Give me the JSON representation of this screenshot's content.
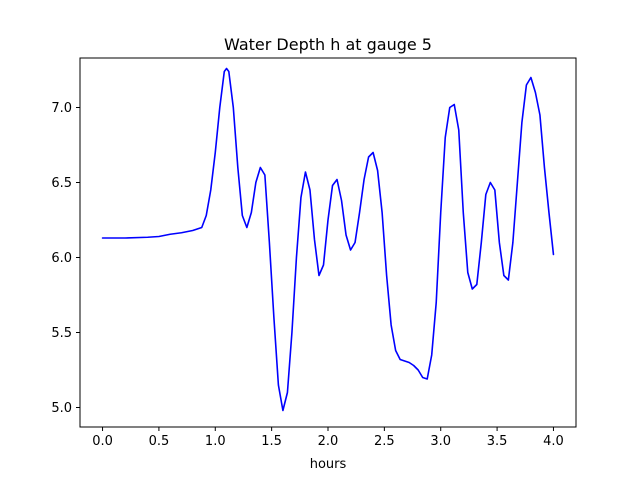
{
  "chart_data": {
    "type": "line",
    "title": "Water Depth h at gauge 5",
    "xlabel": "hours",
    "ylabel": "",
    "xlim": [
      -0.2,
      4.2
    ],
    "ylim": [
      4.87,
      7.33
    ],
    "xticks": [
      0.0,
      0.5,
      1.0,
      1.5,
      2.0,
      2.5,
      3.0,
      3.5,
      4.0
    ],
    "xtick_labels": [
      "0.0",
      "0.5",
      "1.0",
      "1.5",
      "2.0",
      "2.5",
      "3.0",
      "3.5",
      "4.0"
    ],
    "yticks": [
      5.0,
      5.5,
      6.0,
      6.5,
      7.0
    ],
    "ytick_labels": [
      "5.0",
      "5.5",
      "6.0",
      "6.5",
      "7.0"
    ],
    "grid": false,
    "series": [
      {
        "color": "#0000ff",
        "x": [
          0.0,
          0.2,
          0.4,
          0.5,
          0.6,
          0.7,
          0.8,
          0.88,
          0.92,
          0.96,
          1.0,
          1.04,
          1.08,
          1.1,
          1.12,
          1.16,
          1.2,
          1.24,
          1.28,
          1.32,
          1.36,
          1.4,
          1.44,
          1.48,
          1.52,
          1.56,
          1.6,
          1.64,
          1.68,
          1.72,
          1.76,
          1.8,
          1.84,
          1.88,
          1.92,
          1.96,
          2.0,
          2.04,
          2.08,
          2.12,
          2.16,
          2.2,
          2.24,
          2.28,
          2.32,
          2.36,
          2.4,
          2.44,
          2.48,
          2.52,
          2.56,
          2.6,
          2.64,
          2.68,
          2.72,
          2.76,
          2.8,
          2.84,
          2.88,
          2.92,
          2.96,
          3.0,
          3.04,
          3.08,
          3.12,
          3.16,
          3.2,
          3.24,
          3.28,
          3.32,
          3.36,
          3.4,
          3.44,
          3.48,
          3.52,
          3.56,
          3.6,
          3.64,
          3.68,
          3.72,
          3.76,
          3.8,
          3.84,
          3.88,
          3.92,
          3.96,
          4.0
        ],
        "y": [
          6.13,
          6.13,
          6.135,
          6.14,
          6.155,
          6.165,
          6.18,
          6.2,
          6.28,
          6.45,
          6.7,
          7.0,
          7.24,
          7.26,
          7.24,
          7.0,
          6.6,
          6.28,
          6.2,
          6.3,
          6.5,
          6.6,
          6.55,
          6.1,
          5.6,
          5.15,
          4.98,
          5.1,
          5.5,
          6.0,
          6.4,
          6.57,
          6.45,
          6.12,
          5.88,
          5.95,
          6.25,
          6.48,
          6.52,
          6.38,
          6.15,
          6.05,
          6.1,
          6.3,
          6.52,
          6.67,
          6.7,
          6.58,
          6.3,
          5.88,
          5.55,
          5.38,
          5.32,
          5.31,
          5.3,
          5.28,
          5.25,
          5.2,
          5.19,
          5.35,
          5.7,
          6.3,
          6.8,
          7.0,
          7.02,
          6.85,
          6.3,
          5.9,
          5.79,
          5.82,
          6.1,
          6.42,
          6.5,
          6.45,
          6.1,
          5.88,
          5.85,
          6.1,
          6.5,
          6.9,
          7.15,
          7.2,
          7.1,
          6.95,
          6.6,
          6.3,
          6.02
        ]
      }
    ]
  }
}
